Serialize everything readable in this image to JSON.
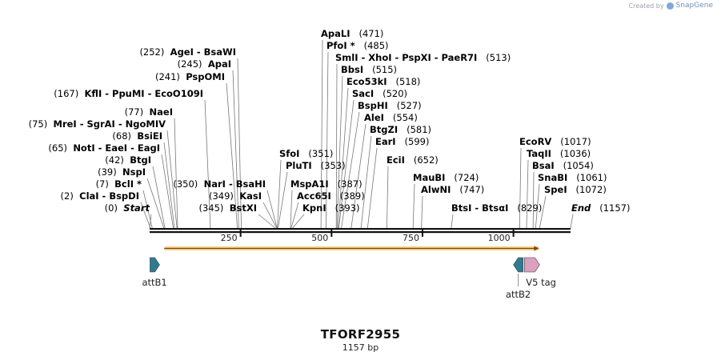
{
  "credit": {
    "created_by": "Created by",
    "brand": "SnapGene"
  },
  "title": "TFORF2955",
  "length_label": "1157 bp",
  "sequence_length": 1157,
  "ticks": [
    250,
    500,
    750,
    1000
  ],
  "orf": {
    "start": 40,
    "end": 1070,
    "color": "#f2a93b"
  },
  "features": [
    {
      "name": "attB1",
      "start": 1,
      "end": 25,
      "direction": "forward",
      "color": "#2f7c91"
    },
    {
      "name": "attB2",
      "start": 1000,
      "end": 1024,
      "direction": "reverse",
      "color": "#2f7c91"
    },
    {
      "name": "V5 tag",
      "start": 1030,
      "end": 1072,
      "direction": "forward",
      "color": "#d9a0c0"
    }
  ],
  "sites": [
    {
      "text": "Start",
      "pos_label": "(0)",
      "bp": 0,
      "italic": true
    },
    {
      "text": "ClaI - BspDI",
      "pos_label": "(2)",
      "bp": 2
    },
    {
      "text": "BclI *",
      "pos_label": "(7)",
      "bp": 7
    },
    {
      "text": "NspI",
      "pos_label": "(39)",
      "bp": 39
    },
    {
      "text": "BtgI",
      "pos_label": "(42)",
      "bp": 42
    },
    {
      "text": "NotI - EaeI - EagI",
      "pos_label": "(65)",
      "bp": 65
    },
    {
      "text": "BsiEI",
      "pos_label": "(68)",
      "bp": 68
    },
    {
      "text": "MreI - SgrAI - NgoMIV",
      "pos_label": "(75)",
      "bp": 75
    },
    {
      "text": "NaeI",
      "pos_label": "(77)",
      "bp": 77
    },
    {
      "text": "KflI - PpuMI - EcoO109I",
      "pos_label": "(167)",
      "bp": 167
    },
    {
      "text": "PspOMI",
      "pos_label": "(241)",
      "bp": 241
    },
    {
      "text": "ApaI",
      "pos_label": "(245)",
      "bp": 245
    },
    {
      "text": "AgeI - BsaWI",
      "pos_label": "(252)",
      "bp": 252
    },
    {
      "text": "BstXI",
      "pos_label": "(345)",
      "bp": 345
    },
    {
      "text": "KasI",
      "pos_label": "(349)",
      "bp": 349
    },
    {
      "text": "NarI - BsaHI",
      "pos_label": "(350)",
      "bp": 350
    },
    {
      "text": "SfoI",
      "pos_label": "(351)",
      "bp": 351
    },
    {
      "text": "PluTI",
      "pos_label": "(353)",
      "bp": 353
    },
    {
      "text": "MspA1I",
      "pos_label": "(387)",
      "bp": 387
    },
    {
      "text": "Acc65I",
      "pos_label": "(389)",
      "bp": 389
    },
    {
      "text": "KpnI",
      "pos_label": "(393)",
      "bp": 393
    },
    {
      "text": "ApaLI",
      "pos_label": "(471)",
      "bp": 471
    },
    {
      "text": "PfoI *",
      "pos_label": "(485)",
      "bp": 485
    },
    {
      "text": "SmlI - XhoI - PspXI - PaeR7I",
      "pos_label": "(513)",
      "bp": 513
    },
    {
      "text": "BbsI",
      "pos_label": "(515)",
      "bp": 515
    },
    {
      "text": "Eco53kI",
      "pos_label": "(518)",
      "bp": 518
    },
    {
      "text": "SacI",
      "pos_label": "(520)",
      "bp": 520
    },
    {
      "text": "BspHI",
      "pos_label": "(527)",
      "bp": 527
    },
    {
      "text": "AleI",
      "pos_label": "(554)",
      "bp": 554
    },
    {
      "text": "BtgZI",
      "pos_label": "(581)",
      "bp": 581
    },
    {
      "text": "EarI",
      "pos_label": "(599)",
      "bp": 599
    },
    {
      "text": "EciI",
      "pos_label": "(652)",
      "bp": 652
    },
    {
      "text": "MauBI",
      "pos_label": "(724)",
      "bp": 724
    },
    {
      "text": "AlwNI",
      "pos_label": "(747)",
      "bp": 747
    },
    {
      "text": "BtsI - BtsαI",
      "pos_label": "(829)",
      "bp": 829
    },
    {
      "text": "EcoRV",
      "pos_label": "(1017)",
      "bp": 1017
    },
    {
      "text": "TaqII",
      "pos_label": "(1036)",
      "bp": 1036
    },
    {
      "text": "BsaI",
      "pos_label": "(1054)",
      "bp": 1054
    },
    {
      "text": "SnaBI",
      "pos_label": "(1061)",
      "bp": 1061
    },
    {
      "text": "SpeI",
      "pos_label": "(1072)",
      "bp": 1072
    },
    {
      "text": "End",
      "pos_label": "(1157)",
      "bp": 1157,
      "italic": true
    }
  ]
}
